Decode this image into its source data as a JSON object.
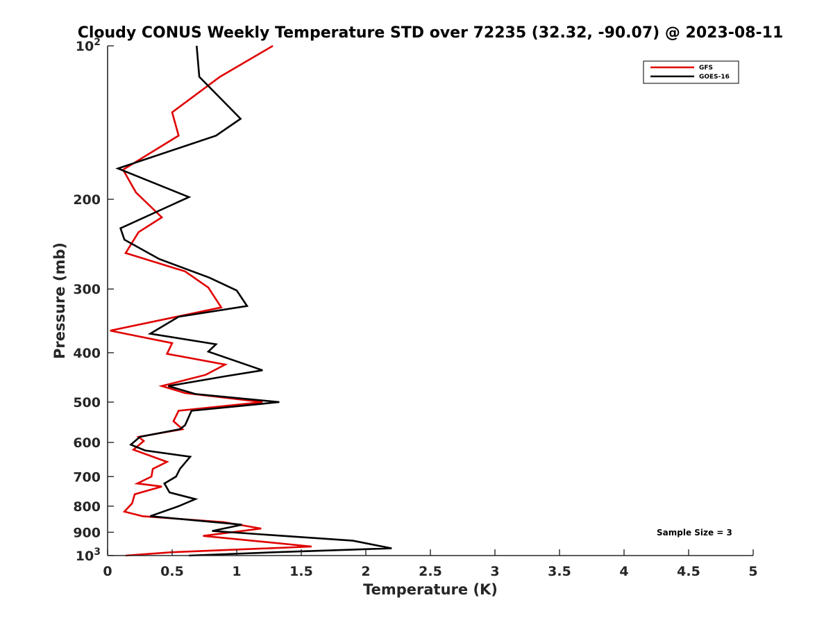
{
  "chart_data": {
    "type": "line",
    "title": "Cloudy CONUS Weekly Temperature STD over 72235 (32.32, -90.07) @ 2023-08-11",
    "xlabel": "Temperature (K)",
    "ylabel": "Pressure (mb)",
    "xlim": [
      0,
      5
    ],
    "ylim": [
      1000,
      100
    ],
    "y_scale": "log",
    "y_reversed": true,
    "x_ticks": [
      "0",
      "0.5",
      "1",
      "1.5",
      "2",
      "2.5",
      "3",
      "3.5",
      "4",
      "4.5",
      "5"
    ],
    "x_tick_values": [
      0,
      0.5,
      1,
      1.5,
      2,
      2.5,
      3,
      3.5,
      4,
      4.5,
      5
    ],
    "y_ticks": [
      {
        "value": 100,
        "base": "10",
        "exp": "2"
      },
      {
        "value": 200,
        "label": "200"
      },
      {
        "value": 300,
        "label": "300"
      },
      {
        "value": 400,
        "label": "400"
      },
      {
        "value": 500,
        "label": "500"
      },
      {
        "value": 600,
        "label": "600"
      },
      {
        "value": 700,
        "label": "700"
      },
      {
        "value": 800,
        "label": "800"
      },
      {
        "value": 900,
        "label": "900"
      },
      {
        "value": 1000,
        "base": "10",
        "exp": "3"
      }
    ],
    "grid": false,
    "legend": "top-right",
    "annotation": "Sample Size = 3",
    "series": [
      {
        "name": "GFS",
        "color": "#e00000",
        "points": [
          [
            1.28,
            100
          ],
          [
            0.87,
            115
          ],
          [
            0.5,
            135
          ],
          [
            0.55,
            150
          ],
          [
            0.12,
            175
          ],
          [
            0.22,
            194
          ],
          [
            0.42,
            217
          ],
          [
            0.24,
            232
          ],
          [
            0.14,
            255
          ],
          [
            0.6,
            277
          ],
          [
            0.78,
            298
          ],
          [
            0.88,
            326
          ],
          [
            0.02,
            362
          ],
          [
            0.5,
            383
          ],
          [
            0.46,
            402
          ],
          [
            0.91,
            422
          ],
          [
            0.76,
            442
          ],
          [
            0.42,
            465
          ],
          [
            0.6,
            480
          ],
          [
            1.2,
            500
          ],
          [
            0.55,
            520
          ],
          [
            0.51,
            545
          ],
          [
            0.58,
            565
          ],
          [
            0.24,
            585
          ],
          [
            0.28,
            596
          ],
          [
            0.2,
            620
          ],
          [
            0.46,
            655
          ],
          [
            0.35,
            676
          ],
          [
            0.34,
            700
          ],
          [
            0.23,
            722
          ],
          [
            0.42,
            732
          ],
          [
            0.21,
            758
          ],
          [
            0.19,
            790
          ],
          [
            0.13,
            820
          ],
          [
            0.27,
            837
          ],
          [
            0.9,
            860
          ],
          [
            1.19,
            885
          ],
          [
            0.74,
            915
          ],
          [
            1.58,
            960
          ],
          [
            0.5,
            985
          ],
          [
            0.14,
            1000
          ]
        ]
      },
      {
        "name": "GOES-16",
        "color": "#000000",
        "points": [
          [
            0.69,
            100
          ],
          [
            0.71,
            115
          ],
          [
            1.03,
            139
          ],
          [
            0.84,
            150
          ],
          [
            0.08,
            174
          ],
          [
            0.63,
            198
          ],
          [
            0.1,
            228
          ],
          [
            0.13,
            240
          ],
          [
            0.4,
            262
          ],
          [
            0.79,
            285
          ],
          [
            1.0,
            302
          ],
          [
            1.08,
            324
          ],
          [
            0.55,
            340
          ],
          [
            0.33,
            367
          ],
          [
            0.84,
            385
          ],
          [
            0.78,
            398
          ],
          [
            1.2,
            433
          ],
          [
            0.91,
            445
          ],
          [
            0.47,
            465
          ],
          [
            0.68,
            482
          ],
          [
            1.33,
            500
          ],
          [
            0.65,
            520
          ],
          [
            0.6,
            555
          ],
          [
            0.56,
            565
          ],
          [
            0.25,
            585
          ],
          [
            0.18,
            606
          ],
          [
            0.29,
            622
          ],
          [
            0.64,
            640
          ],
          [
            0.56,
            676
          ],
          [
            0.53,
            700
          ],
          [
            0.44,
            722
          ],
          [
            0.48,
            752
          ],
          [
            0.68,
            775
          ],
          [
            0.55,
            800
          ],
          [
            0.33,
            837
          ],
          [
            1.04,
            870
          ],
          [
            0.81,
            895
          ],
          [
            1.9,
            935
          ],
          [
            2.2,
            968
          ],
          [
            1.3,
            985
          ],
          [
            0.63,
            1000
          ]
        ]
      }
    ]
  }
}
